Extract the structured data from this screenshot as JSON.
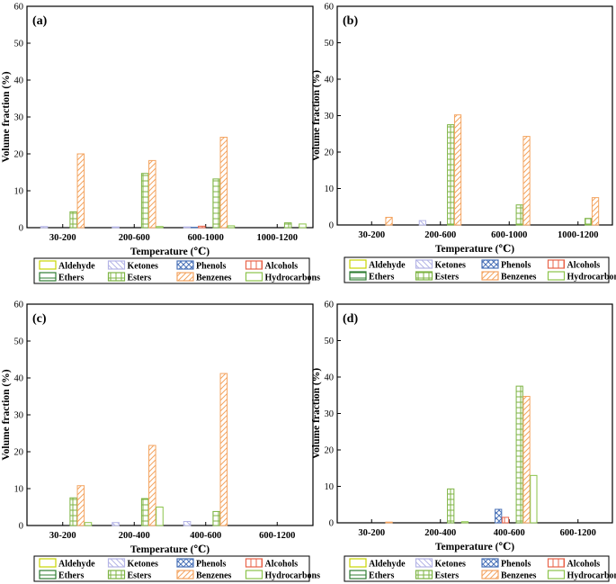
{
  "chart_data": [
    {
      "panel": "(a)",
      "type": "bar",
      "xlabel": "Temperature (℃)",
      "ylabel": "Volume fraction (%)",
      "ylim": [
        0,
        60
      ],
      "yticks": [
        0,
        10,
        20,
        30,
        40,
        50,
        60
      ],
      "categories": [
        "30-200",
        "200-600",
        "600-1000",
        "1000-1200"
      ],
      "series": [
        {
          "name": "Aldehyde",
          "values": [
            0,
            0,
            0,
            0
          ]
        },
        {
          "name": "Ketones",
          "values": [
            0.3,
            0.2,
            0.2,
            0
          ]
        },
        {
          "name": "Phenols",
          "values": [
            0,
            0,
            0.1,
            0
          ]
        },
        {
          "name": "Alcohols",
          "values": [
            0,
            0,
            0.4,
            0
          ]
        },
        {
          "name": "Ethers",
          "values": [
            0,
            0,
            0,
            0
          ]
        },
        {
          "name": "Esters",
          "values": [
            4.3,
            14.7,
            13.2,
            1.3
          ]
        },
        {
          "name": "Benzenes",
          "values": [
            20.0,
            18.2,
            24.5,
            0
          ]
        },
        {
          "name": "Hydrocarbons",
          "values": [
            0,
            0.3,
            0.5,
            1.0
          ]
        }
      ]
    },
    {
      "panel": "(b)",
      "type": "bar",
      "xlabel": "Temperature (℃)",
      "ylabel": "Volume fraction (%)",
      "ylim": [
        0,
        60
      ],
      "yticks": [
        0,
        10,
        20,
        30,
        40,
        50,
        60
      ],
      "categories": [
        "30-200",
        "200-600",
        "600-1000",
        "1000-1200"
      ],
      "series": [
        {
          "name": "Aldehyde",
          "values": [
            0,
            0,
            0,
            0
          ]
        },
        {
          "name": "Ketones",
          "values": [
            0,
            1.2,
            0,
            0
          ]
        },
        {
          "name": "Phenols",
          "values": [
            0,
            0,
            0,
            0
          ]
        },
        {
          "name": "Alcohols",
          "values": [
            0,
            0,
            0,
            0
          ]
        },
        {
          "name": "Ethers",
          "values": [
            0,
            0,
            0,
            0
          ]
        },
        {
          "name": "Esters",
          "values": [
            0,
            27.5,
            5.5,
            1.8
          ]
        },
        {
          "name": "Benzenes",
          "values": [
            2.1,
            30.2,
            24.3,
            7.5
          ]
        },
        {
          "name": "Hydrocarbons",
          "values": [
            0,
            0,
            0,
            0
          ]
        }
      ]
    },
    {
      "panel": "(c)",
      "type": "bar",
      "xlabel": "Temperature (℃)",
      "ylabel": "Volume fraction (%)",
      "ylim": [
        0,
        60
      ],
      "yticks": [
        0,
        10,
        20,
        30,
        40,
        50,
        60
      ],
      "categories": [
        "30-200",
        "200-400",
        "400-600",
        "600-1200"
      ],
      "series": [
        {
          "name": "Aldehyde",
          "values": [
            0,
            0,
            0,
            0
          ]
        },
        {
          "name": "Ketones",
          "values": [
            0,
            0.8,
            1.1,
            0
          ]
        },
        {
          "name": "Phenols",
          "values": [
            0,
            0,
            0,
            0
          ]
        },
        {
          "name": "Alcohols",
          "values": [
            0,
            0,
            0,
            0
          ]
        },
        {
          "name": "Ethers",
          "values": [
            0,
            0,
            0,
            0
          ]
        },
        {
          "name": "Esters",
          "values": [
            7.5,
            7.3,
            3.8,
            0
          ]
        },
        {
          "name": "Benzenes",
          "values": [
            10.8,
            21.7,
            41.2,
            0
          ]
        },
        {
          "name": "Hydrocarbons",
          "values": [
            0.8,
            5.0,
            0,
            0
          ]
        }
      ]
    },
    {
      "panel": "(d)",
      "type": "bar",
      "xlabel": "Temperature (℃)",
      "ylabel": "Volume fraction (%)",
      "ylim": [
        0,
        60
      ],
      "yticks": [
        0,
        10,
        20,
        30,
        40,
        50,
        60
      ],
      "categories": [
        "30-200",
        "200-400",
        "400-600",
        "600-1200"
      ],
      "series": [
        {
          "name": "Aldehyde",
          "values": [
            0,
            0,
            0,
            0
          ]
        },
        {
          "name": "Ketones",
          "values": [
            0,
            0,
            0,
            0
          ]
        },
        {
          "name": "Phenols",
          "values": [
            0,
            0,
            3.7,
            0
          ]
        },
        {
          "name": "Alcohols",
          "values": [
            0,
            0,
            1.5,
            0
          ]
        },
        {
          "name": "Ethers",
          "values": [
            0,
            0,
            0,
            0
          ]
        },
        {
          "name": "Esters",
          "values": [
            0,
            9.3,
            37.5,
            0
          ]
        },
        {
          "name": "Benzenes",
          "values": [
            0.2,
            0,
            34.7,
            0
          ]
        },
        {
          "name": "Hydrocarbons",
          "values": [
            0,
            0.3,
            13.0,
            0
          ]
        }
      ]
    }
  ],
  "legend": [
    {
      "name": "Aldehyde",
      "color": "#c8d400",
      "pattern": "none"
    },
    {
      "name": "Ketones",
      "color": "#b4b4e6",
      "pattern": "diag-back"
    },
    {
      "name": "Phenols",
      "color": "#4a72b8",
      "pattern": "crosshatch"
    },
    {
      "name": "Alcohols",
      "color": "#e8634a",
      "pattern": "vertical"
    },
    {
      "name": "Ethers",
      "color": "#2e7d32",
      "pattern": "horizontal"
    },
    {
      "name": "Esters",
      "color": "#7cb342",
      "pattern": "grid"
    },
    {
      "name": "Benzenes",
      "color": "#f4a460",
      "pattern": "diag"
    },
    {
      "name": "Hydrocarbons",
      "color": "#8bc34a",
      "pattern": "none"
    }
  ]
}
